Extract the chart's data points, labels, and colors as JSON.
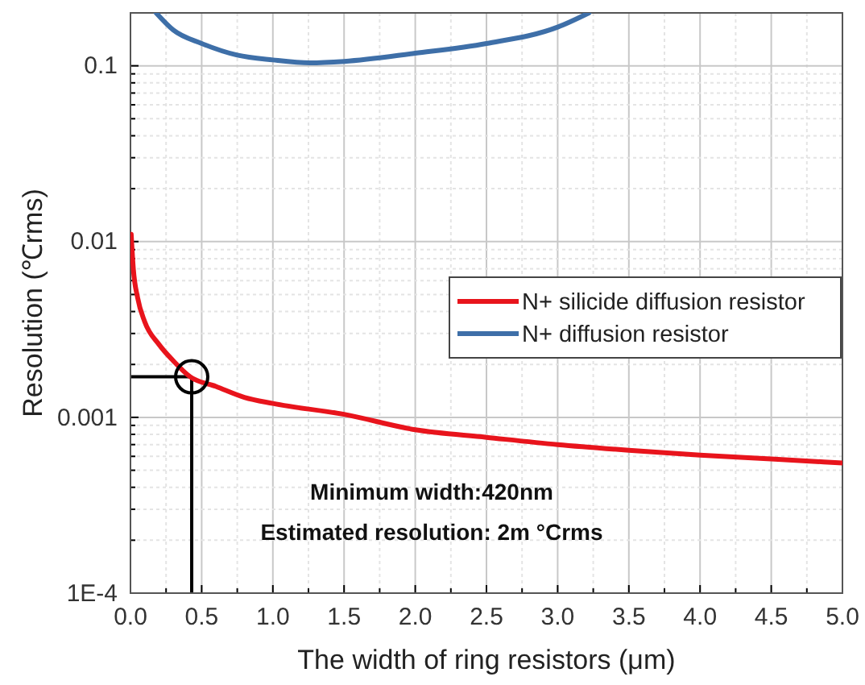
{
  "chart_data": {
    "type": "line",
    "xlabel": "The width of ring resistors (μm)",
    "ylabel": "Resolution (℃rms)",
    "log": "y",
    "grid": true,
    "legend": "right",
    "line_style": "solid",
    "xlim": [
      0,
      5
    ],
    "ylim": [
      0.0001,
      0.2
    ],
    "xticks": [
      {
        "value": 0,
        "label": "0.0"
      },
      {
        "value": 0.25,
        "label": null
      },
      {
        "value": 0.5,
        "label": "0.5"
      },
      {
        "value": 0.75,
        "label": null
      },
      {
        "value": 1,
        "label": "1.0"
      },
      {
        "value": 1.25,
        "label": null
      },
      {
        "value": 1.5,
        "label": "1.5"
      },
      {
        "value": 1.75,
        "label": null
      },
      {
        "value": 2,
        "label": "2.0"
      },
      {
        "value": 2.25,
        "label": null
      },
      {
        "value": 2.5,
        "label": "2.5"
      },
      {
        "value": 2.75,
        "label": null
      },
      {
        "value": 3,
        "label": "3.0"
      },
      {
        "value": 3.25,
        "label": null
      },
      {
        "value": 3.5,
        "label": "3.5"
      },
      {
        "value": 3.75,
        "label": null
      },
      {
        "value": 4,
        "label": "4.0"
      },
      {
        "value": 4.25,
        "label": null
      },
      {
        "value": 4.5,
        "label": "4.5"
      },
      {
        "value": 4.75,
        "label": null
      },
      {
        "value": 5,
        "label": "5.0"
      }
    ],
    "yticks": [
      {
        "value": 0.0001,
        "label": "1E-4"
      },
      {
        "value": 0.0002,
        "label": null
      },
      {
        "value": 0.0003,
        "label": null
      },
      {
        "value": 0.0004,
        "label": null
      },
      {
        "value": 0.0005,
        "label": null
      },
      {
        "value": 0.0006,
        "label": null
      },
      {
        "value": 0.0007,
        "label": null
      },
      {
        "value": 0.0008,
        "label": null
      },
      {
        "value": 0.0009,
        "label": null
      },
      0.001,
      {
        "value": 0.002,
        "label": null
      },
      {
        "value": 0.003,
        "label": null
      },
      {
        "value": 0.004,
        "label": null
      },
      {
        "value": 0.005,
        "label": null
      },
      {
        "value": 0.006,
        "label": null
      },
      {
        "value": 0.007,
        "label": null
      },
      {
        "value": 0.008,
        "label": null
      },
      {
        "value": 0.009,
        "label": null
      },
      0.01,
      {
        "value": 0.02,
        "label": null
      },
      {
        "value": 0.03,
        "label": null
      },
      {
        "value": 0.04,
        "label": null
      },
      {
        "value": 0.05,
        "label": null
      },
      {
        "value": 0.06,
        "label": null
      },
      {
        "value": 0.07,
        "label": null
      },
      {
        "value": 0.08,
        "label": null
      },
      {
        "value": 0.09,
        "label": null
      },
      0.1,
      {
        "value": 0.2,
        "label": null
      }
    ],
    "series": [
      {
        "name": "N+ silicide diffusion resistor",
        "color": "#e8141c",
        "x": [
          0.005,
          0.02,
          0.05,
          0.1,
          0.2,
          0.3,
          0.42,
          0.6,
          0.8,
          1.0,
          1.5,
          2.0,
          2.5,
          3.0,
          3.5,
          4.0,
          4.5,
          5.0
        ],
        "values": [
          0.011,
          0.007,
          0.0048,
          0.0035,
          0.0026,
          0.0021,
          0.0017,
          0.0015,
          0.0013,
          0.0012,
          0.00104,
          0.00085,
          0.00077,
          0.0007,
          0.00065,
          0.00061,
          0.00058,
          0.00055
        ]
      },
      {
        "name": "N+ diffusion resistor",
        "color": "#3e6fa8",
        "x": [
          0.18,
          0.3,
          0.5,
          0.75,
          1.0,
          1.26,
          1.5,
          2.0,
          2.5,
          3.0,
          3.22
        ],
        "values": [
          0.2,
          0.16,
          0.134,
          0.115,
          0.108,
          0.104,
          0.106,
          0.118,
          0.134,
          0.166,
          0.2
        ]
      },
      {
        "type": "scatter",
        "color": "#000000",
        "marker": "circle",
        "x": [
          0.43
        ],
        "values": [
          0.0017
        ]
      }
    ],
    "ref_lines": [
      {
        "axis": "x",
        "value": 0.43,
        "color": "#000000"
      },
      {
        "axis": "y",
        "value": 0.0017,
        "color": "#000000"
      }
    ],
    "annotations": [
      "Minimum width:420nm",
      "Estimated resolution: 2m °Crms"
    ]
  }
}
